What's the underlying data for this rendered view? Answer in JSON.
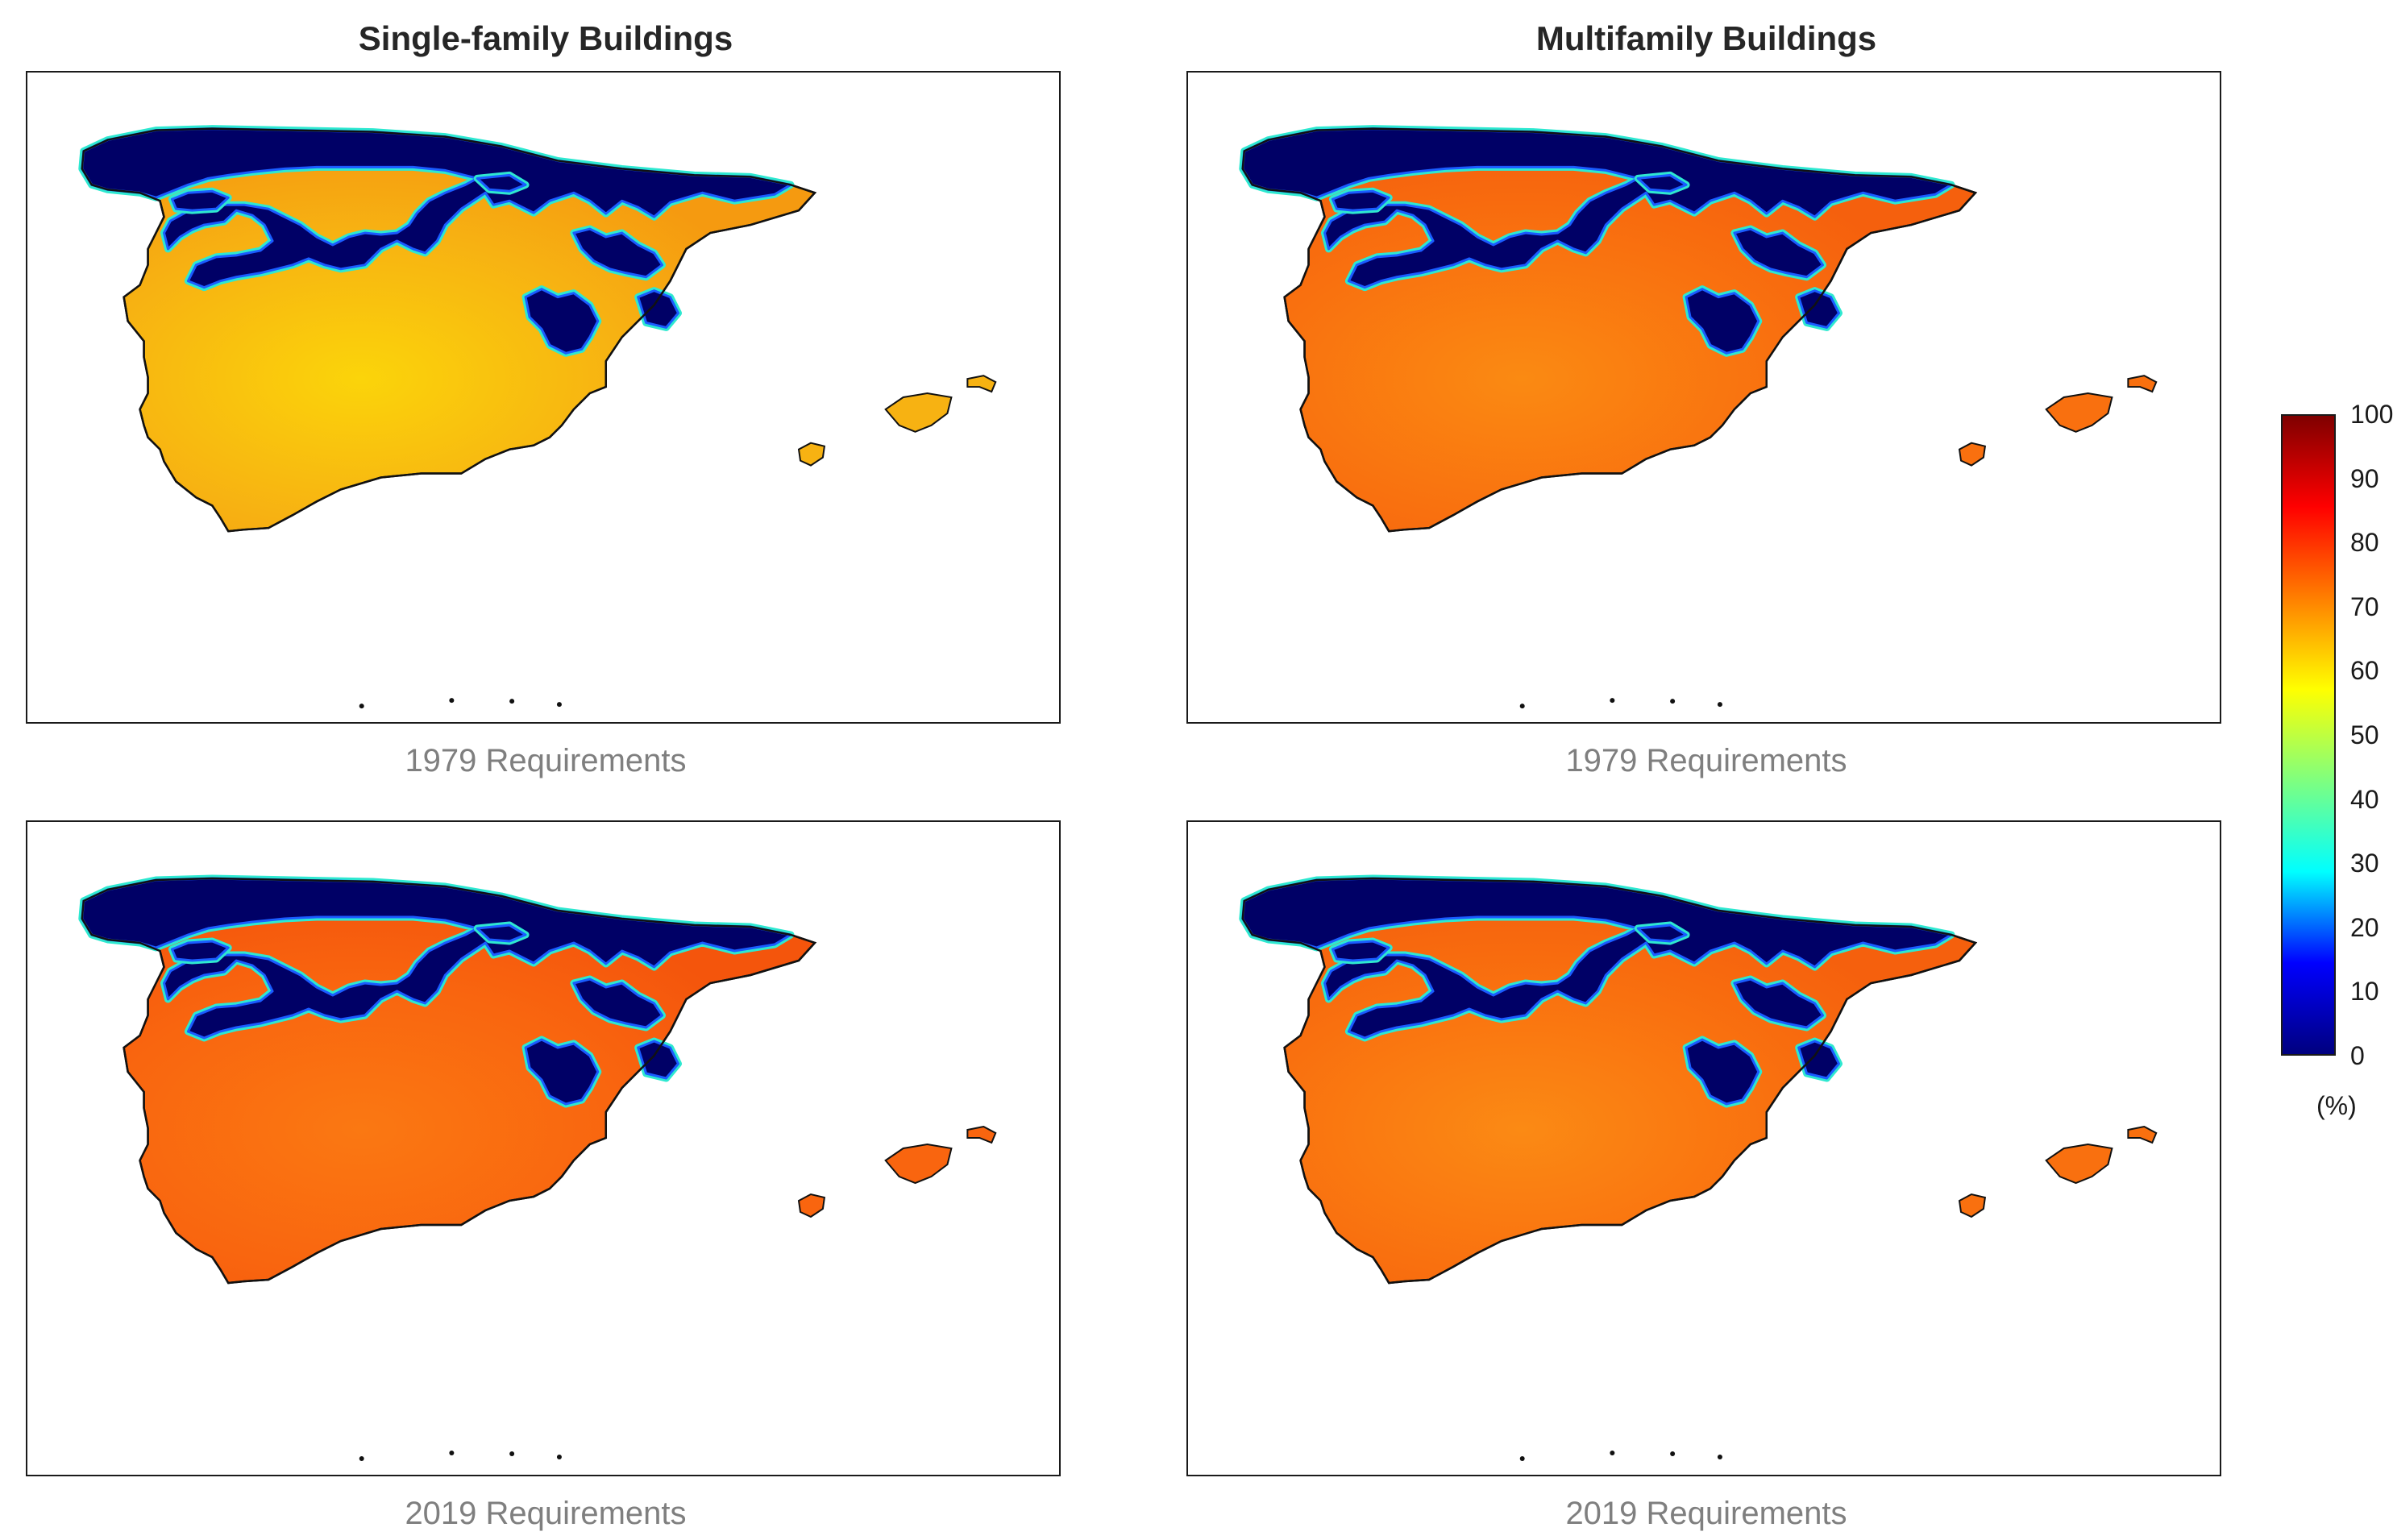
{
  "columns": [
    {
      "title": "Single-family Buildings"
    },
    {
      "title": "Multifamily Buildings"
    }
  ],
  "rows": [
    {
      "caption": "1979 Requirements"
    },
    {
      "caption": "2019 Requirements"
    }
  ],
  "panels": [
    {
      "name": "single-family-1979",
      "land_color": "#f7b212",
      "core_color": "#fbd40a",
      "edge_color": "#f59a10"
    },
    {
      "name": "multifamily-1979",
      "land_color": "#f9700f",
      "core_color": "#fa8a12",
      "edge_color": "#f5600d"
    },
    {
      "name": "single-family-2019",
      "land_color": "#f9650f",
      "core_color": "#fa7812",
      "edge_color": "#f4550c"
    },
    {
      "name": "multifamily-2019",
      "land_color": "#f9700f",
      "core_color": "#fb8a14",
      "edge_color": "#f5600d"
    }
  ],
  "cold_zone_color": "#000066",
  "colorbar": {
    "ticks": [
      "100",
      "90",
      "80",
      "70",
      "60",
      "50",
      "40",
      "30",
      "20",
      "10",
      "0"
    ],
    "unit": "(%)",
    "min": 0,
    "max": 100,
    "colormap": [
      "#00007f",
      "#0000ff",
      "#00ffff",
      "#7fff7f",
      "#ffff00",
      "#ff7f00",
      "#ff0000",
      "#7f0000"
    ]
  }
}
